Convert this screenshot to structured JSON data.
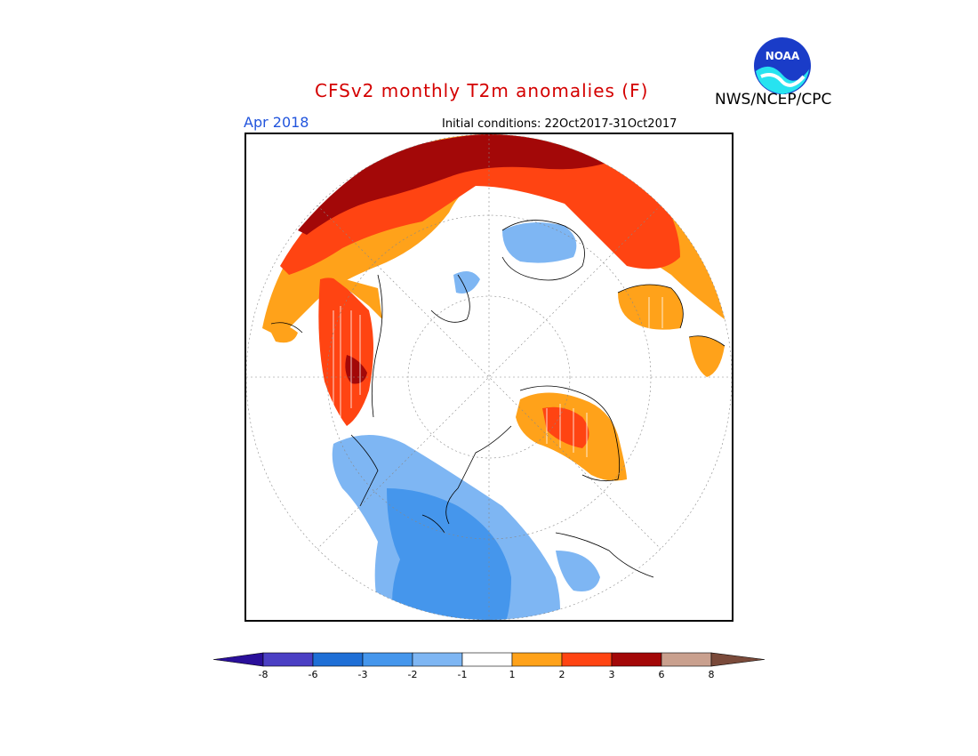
{
  "header": {
    "title": "CFSv2 monthly T2m anomalies (F)",
    "valid_month": "Apr 2018",
    "initial_conditions": "Initial conditions: 22Oct2017-31Oct2017",
    "agency": "NWS/NCEP/CPC",
    "logo_text": "NOAA"
  },
  "colorbar": {
    "levels": [
      "-8",
      "-6",
      "-3",
      "-2",
      "-1",
      "1",
      "2",
      "3",
      "6",
      "8"
    ],
    "colors": [
      "#2a0f9a",
      "#4b3fc4",
      "#1f6fd6",
      "#4596ec",
      "#7eb6f3",
      "#ffffff",
      "#ffa21a",
      "#ff4412",
      "#a30808",
      "#c9a08e",
      "#7a4a3a"
    ]
  },
  "map": {
    "projection_icon": "polar-stereographic-map",
    "colors": {
      "warm1": "#ffa21a",
      "warm2": "#ff4412",
      "warm3": "#a30808",
      "cool1": "#7eb6f3",
      "cool2": "#4596ec"
    }
  }
}
